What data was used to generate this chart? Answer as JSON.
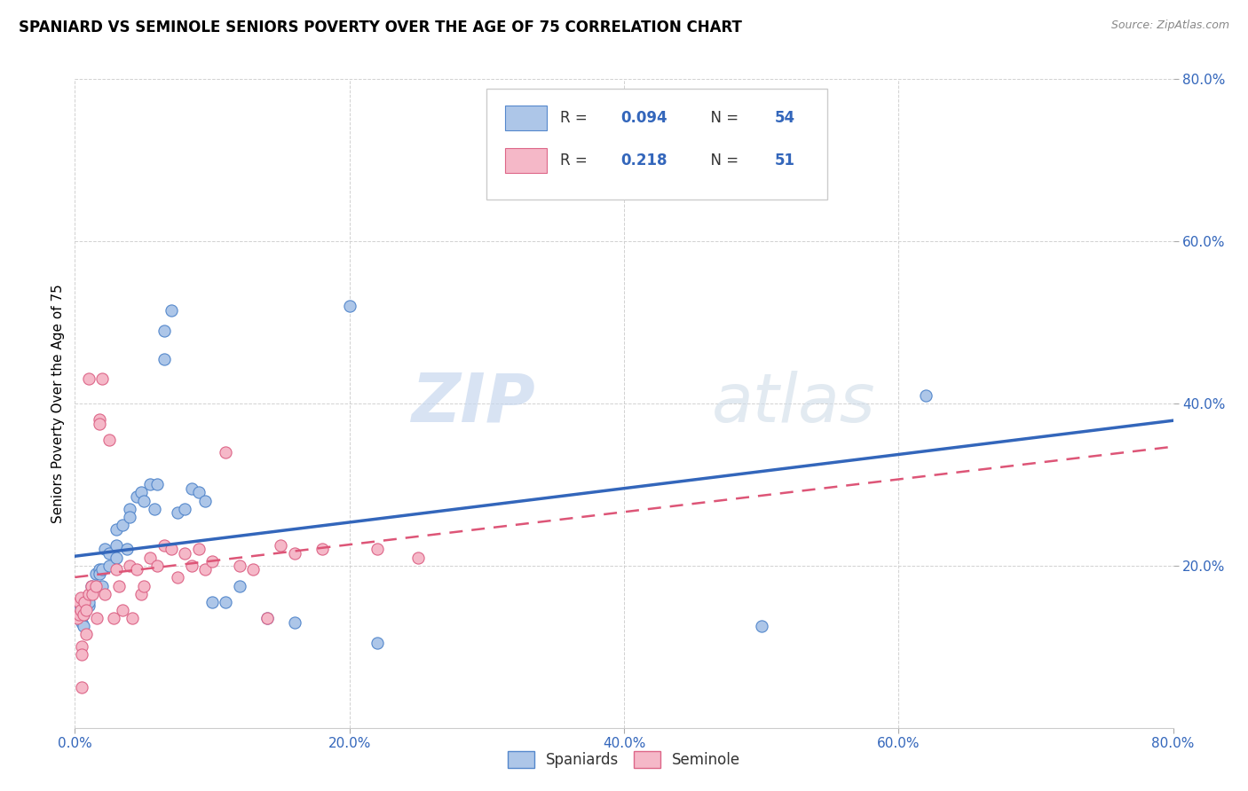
{
  "title": "SPANIARD VS SEMINOLE SENIORS POVERTY OVER THE AGE OF 75 CORRELATION CHART",
  "source": "Source: ZipAtlas.com",
  "ylabel": "Seniors Poverty Over the Age of 75",
  "xlim": [
    0.0,
    0.8
  ],
  "ylim": [
    0.0,
    0.8
  ],
  "xticks": [
    0.0,
    0.2,
    0.4,
    0.6,
    0.8
  ],
  "yticks": [
    0.2,
    0.4,
    0.6,
    0.8
  ],
  "xtick_labels": [
    "0.0%",
    "20.0%",
    "40.0%",
    "60.0%",
    "80.0%"
  ],
  "ytick_labels": [
    "20.0%",
    "40.0%",
    "60.0%",
    "80.0%"
  ],
  "spaniards_color": "#adc6e8",
  "seminole_color": "#f5b8c8",
  "spaniards_edge": "#5588cc",
  "seminole_edge": "#dd6688",
  "line_spaniards": "#3366bb",
  "line_seminole": "#dd5577",
  "watermark_zip": "ZIP",
  "watermark_atlas": "atlas",
  "spaniards_x": [
    0.003,
    0.003,
    0.004,
    0.005,
    0.005,
    0.006,
    0.006,
    0.007,
    0.008,
    0.008,
    0.01,
    0.01,
    0.01,
    0.012,
    0.013,
    0.015,
    0.015,
    0.018,
    0.018,
    0.02,
    0.02,
    0.022,
    0.025,
    0.025,
    0.03,
    0.03,
    0.03,
    0.035,
    0.038,
    0.04,
    0.04,
    0.045,
    0.048,
    0.05,
    0.055,
    0.058,
    0.06,
    0.065,
    0.065,
    0.07,
    0.075,
    0.08,
    0.085,
    0.09,
    0.095,
    0.1,
    0.11,
    0.12,
    0.14,
    0.16,
    0.2,
    0.22,
    0.5,
    0.62
  ],
  "spaniards_y": [
    0.135,
    0.145,
    0.15,
    0.13,
    0.155,
    0.125,
    0.14,
    0.15,
    0.155,
    0.16,
    0.15,
    0.16,
    0.155,
    0.175,
    0.17,
    0.175,
    0.19,
    0.195,
    0.19,
    0.195,
    0.175,
    0.22,
    0.2,
    0.215,
    0.21,
    0.225,
    0.245,
    0.25,
    0.22,
    0.27,
    0.26,
    0.285,
    0.29,
    0.28,
    0.3,
    0.27,
    0.3,
    0.49,
    0.455,
    0.515,
    0.265,
    0.27,
    0.295,
    0.29,
    0.28,
    0.155,
    0.155,
    0.175,
    0.135,
    0.13,
    0.52,
    0.105,
    0.125,
    0.41
  ],
  "seminole_x": [
    0.002,
    0.003,
    0.003,
    0.004,
    0.004,
    0.005,
    0.005,
    0.005,
    0.006,
    0.007,
    0.008,
    0.008,
    0.01,
    0.01,
    0.012,
    0.013,
    0.015,
    0.016,
    0.018,
    0.018,
    0.02,
    0.022,
    0.025,
    0.028,
    0.03,
    0.032,
    0.035,
    0.04,
    0.042,
    0.045,
    0.048,
    0.05,
    0.055,
    0.06,
    0.065,
    0.07,
    0.075,
    0.08,
    0.085,
    0.09,
    0.095,
    0.1,
    0.11,
    0.12,
    0.13,
    0.14,
    0.15,
    0.16,
    0.18,
    0.22,
    0.25
  ],
  "seminole_y": [
    0.135,
    0.14,
    0.155,
    0.16,
    0.145,
    0.1,
    0.09,
    0.05,
    0.14,
    0.155,
    0.145,
    0.115,
    0.43,
    0.165,
    0.175,
    0.165,
    0.175,
    0.135,
    0.38,
    0.375,
    0.43,
    0.165,
    0.355,
    0.135,
    0.195,
    0.175,
    0.145,
    0.2,
    0.135,
    0.195,
    0.165,
    0.175,
    0.21,
    0.2,
    0.225,
    0.22,
    0.185,
    0.215,
    0.2,
    0.22,
    0.195,
    0.205,
    0.34,
    0.2,
    0.195,
    0.135,
    0.225,
    0.215,
    0.22,
    0.22,
    0.21
  ]
}
